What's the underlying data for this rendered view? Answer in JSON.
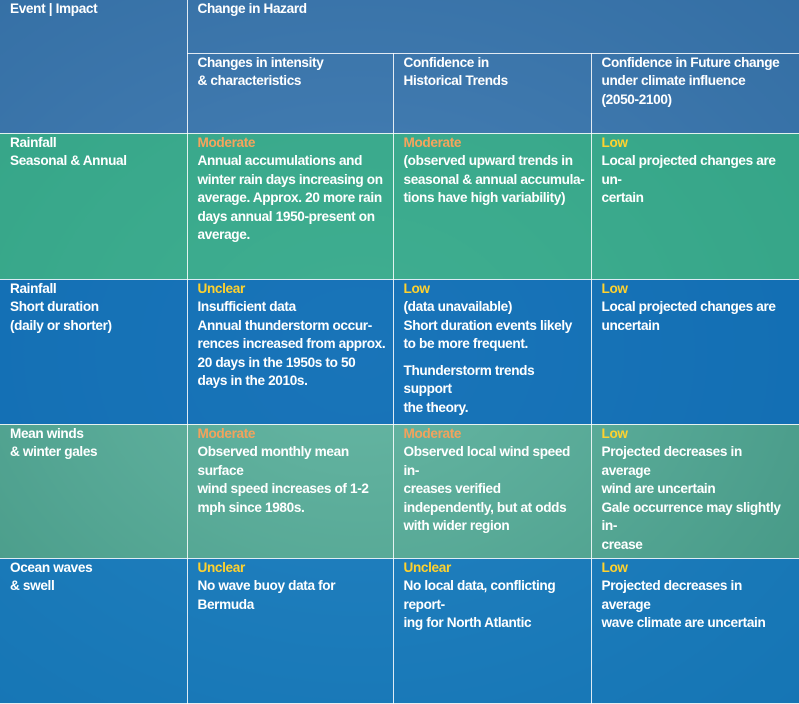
{
  "header": {
    "event_label": "Event | Impact",
    "hazard_label": "Change in Hazard",
    "col_intensity": "Changes in intensity\n& characteristics",
    "col_historical": "Confidence in\nHistorical Trends",
    "col_future": "Confidence in Future change\nunder climate influence\n(2050-2100)"
  },
  "rows": [
    {
      "event": "Rainfall\nSeasonal & Annual",
      "intensity": {
        "level": "Moderate",
        "text": "Annual accumulations and\nwinter rain days increasing on\naverage. Approx. 20 more rain\ndays annual 1950-present on\naverage."
      },
      "historical": {
        "level": "Moderate",
        "text": "(observed upward trends in\nseasonal & annual accumula-\ntions have high variability)"
      },
      "future": {
        "level": "Low",
        "text": "Local projected changes are un-\ncertain"
      }
    },
    {
      "event": "Rainfall\nShort duration\n(daily or shorter)",
      "intensity": {
        "level": "Unclear",
        "text": "Insufficient data\nAnnual thunderstorm occur-\nrences increased from approx.\n20 days in the 1950s to 50\ndays in the 2010s."
      },
      "historical": {
        "level": "Low",
        "text": "(data unavailable)\nShort duration events likely\nto be more frequent.",
        "text2": "Thunderstorm trends support\nthe theory."
      },
      "future": {
        "level": "Low",
        "text": "Local projected changes are\nuncertain"
      }
    },
    {
      "event": "Mean winds\n& winter gales",
      "intensity": {
        "level": "Moderate",
        "text": "Observed monthly mean surface\nwind speed increases of 1-2\nmph since 1980s."
      },
      "historical": {
        "level": "Moderate",
        "text": "Observed local wind speed in-\ncreases verified\nindependently, but at odds\nwith wider region"
      },
      "future": {
        "level": "Low",
        "text": "Projected decreases in average\nwind are uncertain\nGale occurrence may slightly in-\ncrease"
      }
    },
    {
      "event": "Ocean waves\n& swell",
      "intensity": {
        "level": "Unclear",
        "text": "No wave buoy data for Bermuda"
      },
      "historical": {
        "level": "Unclear",
        "text": "No local data, conflicting report-\ning for North Atlantic"
      },
      "future": {
        "level": "Low",
        "text": "Projected decreases in average\nwave climate are uncertain"
      }
    }
  ],
  "colors": {
    "green": "#2caa87",
    "blue": "#0a6cb6",
    "moderate": "#f6a45c",
    "unclear_low": "#ffd22e"
  }
}
